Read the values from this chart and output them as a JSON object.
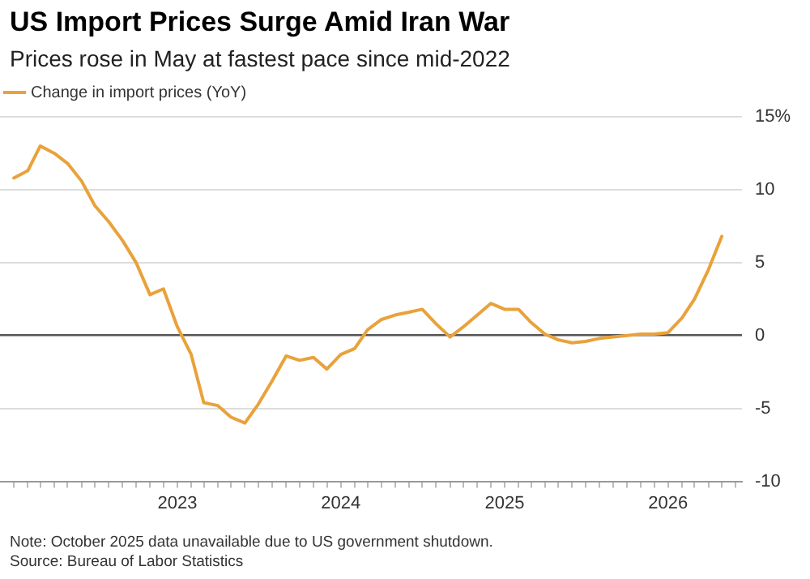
{
  "chart_data": {
    "type": "line",
    "title": "US Import Prices Surge Amid Iran War",
    "subtitle": "Prices rose in May at fastest pace since mid-2022",
    "x": [
      "2022-01",
      "2022-02",
      "2022-03",
      "2022-04",
      "2022-05",
      "2022-06",
      "2022-07",
      "2022-08",
      "2022-09",
      "2022-10",
      "2022-11",
      "2022-12",
      "2023-01",
      "2023-02",
      "2023-03",
      "2023-04",
      "2023-05",
      "2023-06",
      "2023-07",
      "2023-08",
      "2023-09",
      "2023-10",
      "2023-11",
      "2023-12",
      "2024-01",
      "2024-02",
      "2024-03",
      "2024-04",
      "2024-05",
      "2024-06",
      "2024-07",
      "2024-08",
      "2024-09",
      "2024-10",
      "2024-11",
      "2024-12",
      "2025-01",
      "2025-02",
      "2025-03",
      "2025-04",
      "2025-05",
      "2025-06",
      "2025-07",
      "2025-08",
      "2025-09",
      "2025-10",
      "2025-11",
      "2025-12",
      "2026-01",
      "2026-02",
      "2026-03",
      "2026-04",
      "2026-05"
    ],
    "series": [
      {
        "name": "Change in import prices (YoY)",
        "color": "#e9a23b",
        "values": [
          10.8,
          11.3,
          13.0,
          12.5,
          11.8,
          10.6,
          8.9,
          7.8,
          6.5,
          5.0,
          2.8,
          3.2,
          0.6,
          -1.3,
          -4.6,
          -4.8,
          -5.6,
          -6.0,
          -4.7,
          -3.1,
          -1.4,
          -1.7,
          -1.5,
          -2.3,
          -1.3,
          -0.9,
          0.4,
          1.1,
          1.4,
          1.6,
          1.8,
          0.8,
          -0.1,
          0.6,
          1.4,
          2.2,
          1.8,
          1.8,
          0.9,
          0.1,
          -0.3,
          -0.5,
          -0.4,
          -0.2,
          -0.1,
          null,
          0.1,
          0.1,
          0.2,
          1.2,
          2.5,
          4.5,
          6.8
        ]
      }
    ],
    "xlim": [
      "2021-12-01",
      "2026-06-15"
    ],
    "xticks": [
      {
        "value": "2022-01",
        "label": null
      },
      {
        "value": "2022-02",
        "label": null
      },
      {
        "value": "2022-03",
        "label": null
      },
      {
        "value": "2022-04",
        "label": null
      },
      {
        "value": "2022-05",
        "label": null
      },
      {
        "value": "2022-06",
        "label": null
      },
      {
        "value": "2022-07",
        "label": null
      },
      {
        "value": "2022-08",
        "label": null
      },
      {
        "value": "2022-09",
        "label": null
      },
      {
        "value": "2022-10",
        "label": null
      },
      {
        "value": "2022-11",
        "label": null
      },
      {
        "value": "2022-12",
        "label": null
      },
      {
        "value": "2023-01",
        "label": "2023"
      },
      {
        "value": "2023-02",
        "label": null
      },
      {
        "value": "2023-03",
        "label": null
      },
      {
        "value": "2023-04",
        "label": null
      },
      {
        "value": "2023-05",
        "label": null
      },
      {
        "value": "2023-06",
        "label": null
      },
      {
        "value": "2023-07",
        "label": null
      },
      {
        "value": "2023-08",
        "label": null
      },
      {
        "value": "2023-09",
        "label": null
      },
      {
        "value": "2023-10",
        "label": null
      },
      {
        "value": "2023-11",
        "label": null
      },
      {
        "value": "2023-12",
        "label": null
      },
      {
        "value": "2024-01",
        "label": "2024"
      },
      {
        "value": "2024-02",
        "label": null
      },
      {
        "value": "2024-03",
        "label": null
      },
      {
        "value": "2024-04",
        "label": null
      },
      {
        "value": "2024-05",
        "label": null
      },
      {
        "value": "2024-06",
        "label": null
      },
      {
        "value": "2024-07",
        "label": null
      },
      {
        "value": "2024-08",
        "label": null
      },
      {
        "value": "2024-09",
        "label": null
      },
      {
        "value": "2024-10",
        "label": null
      },
      {
        "value": "2024-11",
        "label": null
      },
      {
        "value": "2024-12",
        "label": null
      },
      {
        "value": "2025-01",
        "label": "2025"
      },
      {
        "value": "2025-02",
        "label": null
      },
      {
        "value": "2025-03",
        "label": null
      },
      {
        "value": "2025-04",
        "label": null
      },
      {
        "value": "2025-05",
        "label": null
      },
      {
        "value": "2025-06",
        "label": null
      },
      {
        "value": "2025-07",
        "label": null
      },
      {
        "value": "2025-08",
        "label": null
      },
      {
        "value": "2025-09",
        "label": null
      },
      {
        "value": "2025-10",
        "label": null
      },
      {
        "value": "2025-11",
        "label": null
      },
      {
        "value": "2025-12",
        "label": null
      },
      {
        "value": "2026-01",
        "label": "2026"
      },
      {
        "value": "2026-02",
        "label": null
      },
      {
        "value": "2026-03",
        "label": null
      },
      {
        "value": "2026-04",
        "label": null
      },
      {
        "value": "2026-05",
        "label": null
      },
      {
        "value": "2026-06",
        "label": null
      }
    ],
    "ylim": [
      -10,
      15
    ],
    "yticks": [
      -10,
      -5,
      0,
      5,
      10,
      {
        "value": 15,
        "label": "15%"
      }
    ],
    "grid": "y",
    "legend": "top left",
    "marker": "none",
    "line_style": "solid",
    "annotations": [
      "Note: October 2025 data unavailable due to US government shutdown.",
      "Source: Bureau of Labor Statistics"
    ]
  }
}
